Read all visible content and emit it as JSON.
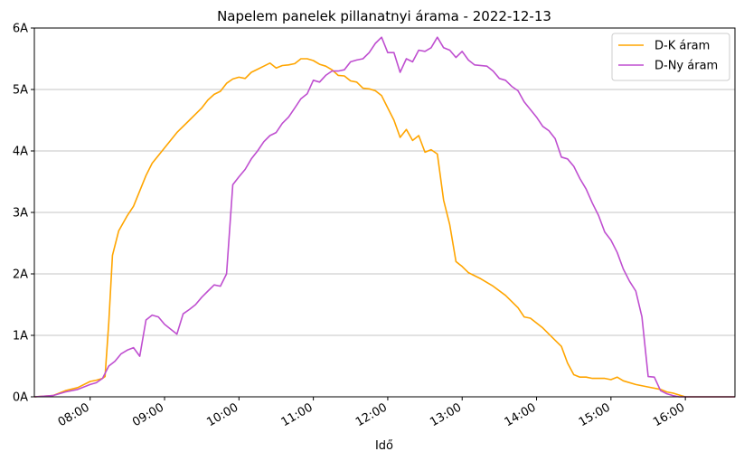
{
  "chart_data": {
    "type": "line",
    "title": "Napelem panelek pillanatnyi árama  -  2022-12-13",
    "xlabel": "Idő",
    "ylabel": "",
    "xlim": [
      "07:15",
      "16:40"
    ],
    "ylim": [
      0,
      6
    ],
    "grid": "horizontal",
    "legend_position": "top-right",
    "x_ticks": [
      "08:00",
      "09:00",
      "10:00",
      "11:00",
      "12:00",
      "13:00",
      "14:00",
      "15:00",
      "16:00"
    ],
    "y_ticks": [
      "0A",
      "1A",
      "2A",
      "3A",
      "4A",
      "5A",
      "6A"
    ],
    "series": [
      {
        "name": "D-K áram",
        "color": "#ffa500",
        "points": [
          [
            "07:15",
            0.0
          ],
          [
            "07:30",
            0.02
          ],
          [
            "07:40",
            0.1
          ],
          [
            "07:50",
            0.15
          ],
          [
            "08:00",
            0.25
          ],
          [
            "08:05",
            0.27
          ],
          [
            "08:10",
            0.3
          ],
          [
            "08:12",
            0.33
          ],
          [
            "08:15",
            1.2
          ],
          [
            "08:18",
            2.3
          ],
          [
            "08:23",
            2.7
          ],
          [
            "08:30",
            2.95
          ],
          [
            "08:35",
            3.1
          ],
          [
            "08:40",
            3.35
          ],
          [
            "08:45",
            3.6
          ],
          [
            "08:50",
            3.8
          ],
          [
            "09:00",
            4.05
          ],
          [
            "09:10",
            4.3
          ],
          [
            "09:20",
            4.5
          ],
          [
            "09:30",
            4.7
          ],
          [
            "09:35",
            4.83
          ],
          [
            "09:40",
            4.92
          ],
          [
            "09:45",
            4.97
          ],
          [
            "09:50",
            5.1
          ],
          [
            "09:55",
            5.17
          ],
          [
            "10:00",
            5.2
          ],
          [
            "10:05",
            5.18
          ],
          [
            "10:10",
            5.28
          ],
          [
            "10:15",
            5.33
          ],
          [
            "10:20",
            5.38
          ],
          [
            "10:25",
            5.43
          ],
          [
            "10:30",
            5.35
          ],
          [
            "10:35",
            5.39
          ],
          [
            "10:40",
            5.4
          ],
          [
            "10:45",
            5.42
          ],
          [
            "10:50",
            5.5
          ],
          [
            "10:55",
            5.5
          ],
          [
            "11:00",
            5.47
          ],
          [
            "11:05",
            5.41
          ],
          [
            "11:10",
            5.38
          ],
          [
            "11:15",
            5.32
          ],
          [
            "11:20",
            5.23
          ],
          [
            "11:25",
            5.22
          ],
          [
            "11:30",
            5.14
          ],
          [
            "11:35",
            5.12
          ],
          [
            "11:40",
            5.02
          ],
          [
            "11:45",
            5.01
          ],
          [
            "11:50",
            4.98
          ],
          [
            "11:55",
            4.9
          ],
          [
            "12:00",
            4.7
          ],
          [
            "12:05",
            4.5
          ],
          [
            "12:10",
            4.22
          ],
          [
            "12:15",
            4.35
          ],
          [
            "12:20",
            4.17
          ],
          [
            "12:25",
            4.25
          ],
          [
            "12:30",
            3.98
          ],
          [
            "12:35",
            4.02
          ],
          [
            "12:40",
            3.95
          ],
          [
            "12:45",
            3.2
          ],
          [
            "12:50",
            2.8
          ],
          [
            "12:55",
            2.2
          ],
          [
            "13:00",
            2.12
          ],
          [
            "13:05",
            2.02
          ],
          [
            "13:15",
            1.92
          ],
          [
            "13:25",
            1.8
          ],
          [
            "13:35",
            1.65
          ],
          [
            "13:45",
            1.45
          ],
          [
            "13:50",
            1.3
          ],
          [
            "13:55",
            1.28
          ],
          [
            "14:05",
            1.12
          ],
          [
            "14:15",
            0.92
          ],
          [
            "14:20",
            0.82
          ],
          [
            "14:25",
            0.55
          ],
          [
            "14:30",
            0.36
          ],
          [
            "14:35",
            0.32
          ],
          [
            "14:40",
            0.32
          ],
          [
            "14:45",
            0.3
          ],
          [
            "14:55",
            0.3
          ],
          [
            "15:00",
            0.28
          ],
          [
            "15:05",
            0.32
          ],
          [
            "15:10",
            0.26
          ],
          [
            "15:20",
            0.2
          ],
          [
            "15:30",
            0.16
          ],
          [
            "15:40",
            0.12
          ],
          [
            "15:45",
            0.08
          ],
          [
            "15:50",
            0.06
          ],
          [
            "15:55",
            0.03
          ],
          [
            "16:00",
            0.0
          ],
          [
            "16:40",
            0.0
          ]
        ]
      },
      {
        "name": "D-Ny áram",
        "color": "#bf4fd0",
        "points": [
          [
            "07:15",
            0.0
          ],
          [
            "07:30",
            0.02
          ],
          [
            "07:40",
            0.08
          ],
          [
            "07:50",
            0.12
          ],
          [
            "08:00",
            0.2
          ],
          [
            "08:05",
            0.23
          ],
          [
            "08:10",
            0.3
          ],
          [
            "08:15",
            0.5
          ],
          [
            "08:20",
            0.58
          ],
          [
            "08:25",
            0.7
          ],
          [
            "08:30",
            0.76
          ],
          [
            "08:35",
            0.8
          ],
          [
            "08:40",
            0.66
          ],
          [
            "08:45",
            1.25
          ],
          [
            "08:50",
            1.33
          ],
          [
            "08:55",
            1.3
          ],
          [
            "09:00",
            1.18
          ],
          [
            "09:05",
            1.1
          ],
          [
            "09:10",
            1.02
          ],
          [
            "09:15",
            1.35
          ],
          [
            "09:20",
            1.42
          ],
          [
            "09:25",
            1.5
          ],
          [
            "09:30",
            1.62
          ],
          [
            "09:35",
            1.72
          ],
          [
            "09:40",
            1.82
          ],
          [
            "09:45",
            1.8
          ],
          [
            "09:50",
            2.0
          ],
          [
            "09:55",
            3.45
          ],
          [
            "10:00",
            3.58
          ],
          [
            "10:05",
            3.7
          ],
          [
            "10:10",
            3.87
          ],
          [
            "10:15",
            4.0
          ],
          [
            "10:20",
            4.15
          ],
          [
            "10:25",
            4.25
          ],
          [
            "10:30",
            4.3
          ],
          [
            "10:35",
            4.45
          ],
          [
            "10:40",
            4.55
          ],
          [
            "10:45",
            4.7
          ],
          [
            "10:50",
            4.85
          ],
          [
            "10:55",
            4.93
          ],
          [
            "11:00",
            5.15
          ],
          [
            "11:05",
            5.12
          ],
          [
            "11:10",
            5.23
          ],
          [
            "11:15",
            5.3
          ],
          [
            "11:20",
            5.3
          ],
          [
            "11:25",
            5.32
          ],
          [
            "11:30",
            5.45
          ],
          [
            "11:35",
            5.48
          ],
          [
            "11:40",
            5.5
          ],
          [
            "11:45",
            5.6
          ],
          [
            "11:50",
            5.75
          ],
          [
            "11:55",
            5.85
          ],
          [
            "12:00",
            5.6
          ],
          [
            "12:05",
            5.6
          ],
          [
            "12:10",
            5.28
          ],
          [
            "12:15",
            5.5
          ],
          [
            "12:20",
            5.45
          ],
          [
            "12:25",
            5.64
          ],
          [
            "12:30",
            5.62
          ],
          [
            "12:35",
            5.68
          ],
          [
            "12:40",
            5.85
          ],
          [
            "12:45",
            5.68
          ],
          [
            "12:50",
            5.64
          ],
          [
            "12:55",
            5.52
          ],
          [
            "13:00",
            5.62
          ],
          [
            "13:05",
            5.48
          ],
          [
            "13:10",
            5.4
          ],
          [
            "13:20",
            5.38
          ],
          [
            "13:25",
            5.3
          ],
          [
            "13:30",
            5.18
          ],
          [
            "13:35",
            5.15
          ],
          [
            "13:40",
            5.05
          ],
          [
            "13:45",
            4.98
          ],
          [
            "13:50",
            4.8
          ],
          [
            "14:00",
            4.55
          ],
          [
            "14:05",
            4.4
          ],
          [
            "14:10",
            4.33
          ],
          [
            "14:15",
            4.2
          ],
          [
            "14:20",
            3.9
          ],
          [
            "14:25",
            3.87
          ],
          [
            "14:30",
            3.75
          ],
          [
            "14:35",
            3.55
          ],
          [
            "14:40",
            3.38
          ],
          [
            "14:45",
            3.15
          ],
          [
            "14:50",
            2.95
          ],
          [
            "14:55",
            2.68
          ],
          [
            "15:00",
            2.55
          ],
          [
            "15:05",
            2.35
          ],
          [
            "15:10",
            2.08
          ],
          [
            "15:15",
            1.88
          ],
          [
            "15:20",
            1.72
          ],
          [
            "15:25",
            1.3
          ],
          [
            "15:30",
            0.33
          ],
          [
            "15:35",
            0.32
          ],
          [
            "15:40",
            0.1
          ],
          [
            "15:45",
            0.05
          ],
          [
            "15:50",
            0.02
          ],
          [
            "15:55",
            0.0
          ],
          [
            "16:40",
            0.0
          ]
        ]
      }
    ]
  }
}
